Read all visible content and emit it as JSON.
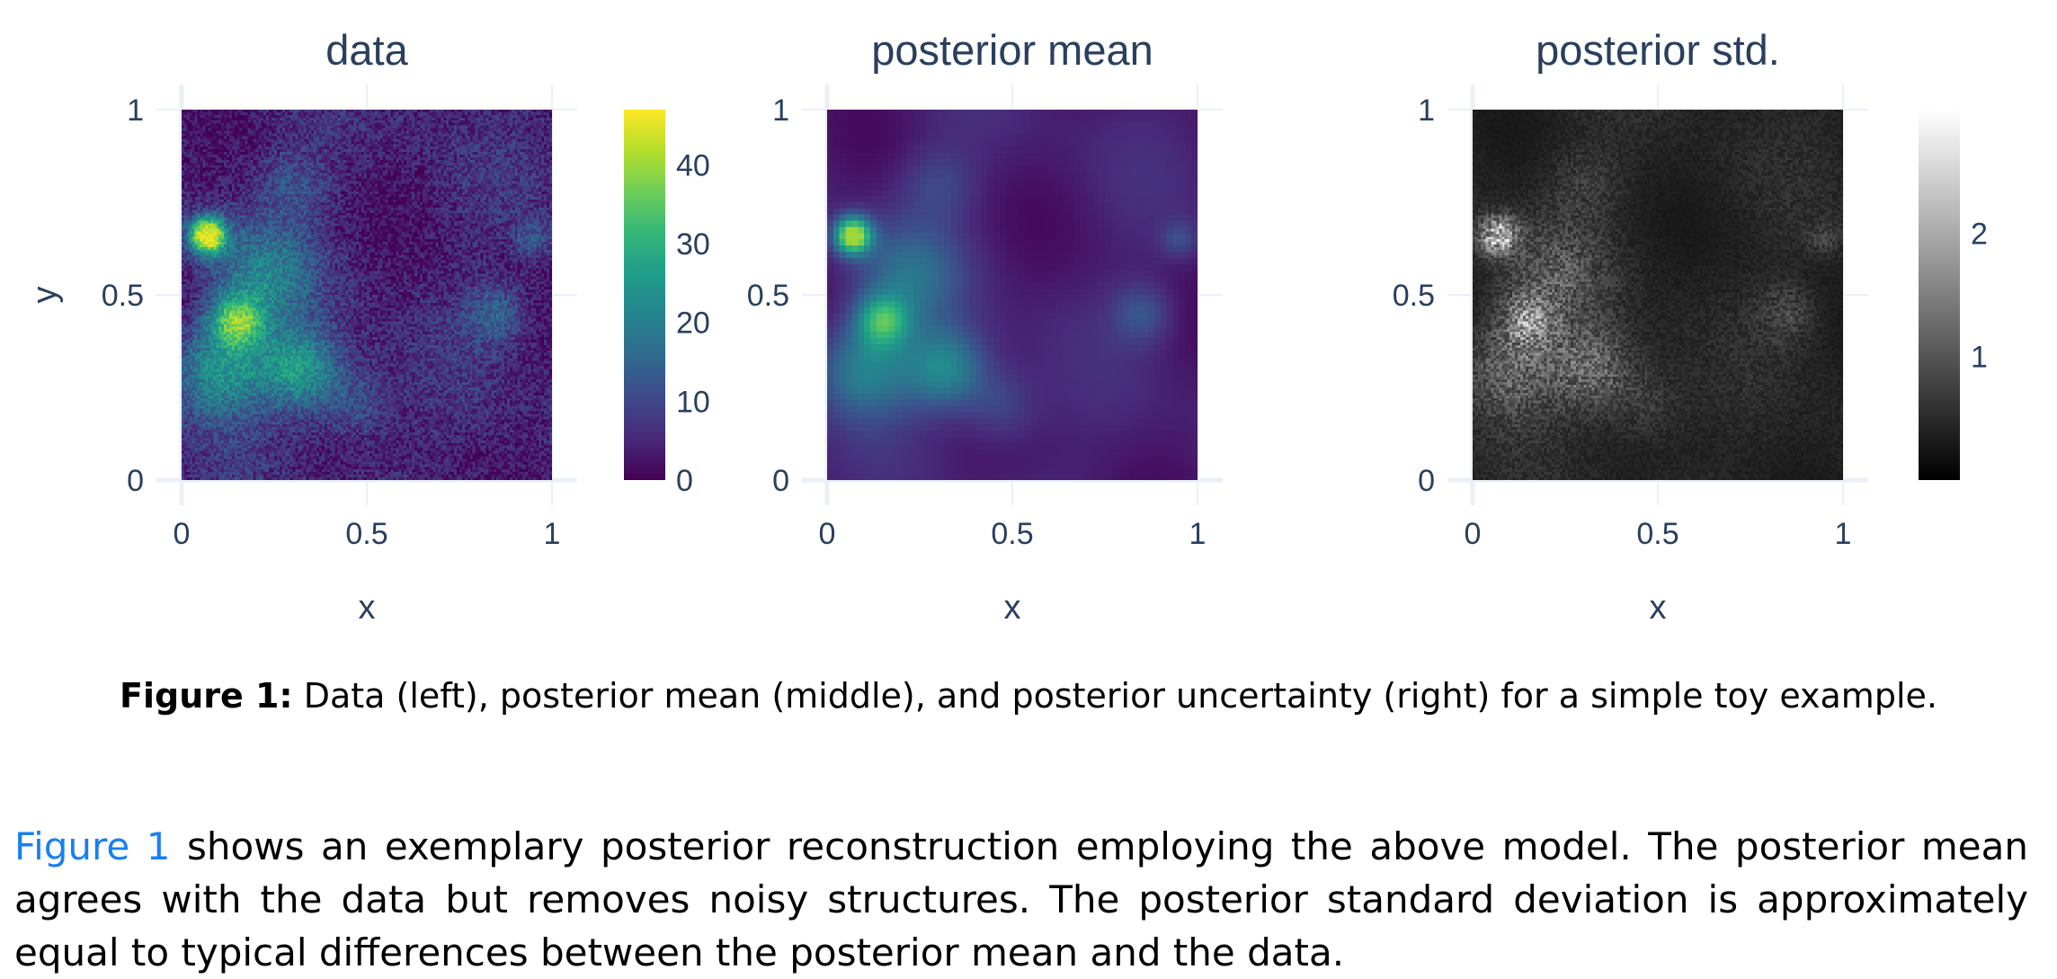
{
  "chart_data": [
    {
      "type": "heatmap",
      "title": "data",
      "xlabel": "x",
      "ylabel": "y",
      "xlim": [
        0,
        1
      ],
      "ylim": [
        0,
        1
      ],
      "xticks": [
        "0",
        "0.5",
        "1"
      ],
      "yticks": [
        "0",
        "0.5",
        "1"
      ],
      "colorscale": "viridis",
      "zrange": [
        0,
        47
      ],
      "colorbar_ticks": [
        "0",
        "10",
        "20",
        "30",
        "40"
      ],
      "colorbar_tick_values": [
        0,
        10,
        20,
        30,
        40
      ]
    },
    {
      "type": "heatmap",
      "title": "posterior mean",
      "xlabel": "x",
      "xlim": [
        0,
        1
      ],
      "ylim": [
        0,
        1
      ],
      "xticks": [
        "0",
        "0.5",
        "1"
      ],
      "yticks": [
        "0",
        "0.5",
        "1"
      ],
      "colorscale": "viridis",
      "zrange": [
        0,
        47
      ]
    },
    {
      "type": "heatmap",
      "title": "posterior std.",
      "xlabel": "x",
      "xlim": [
        0,
        1
      ],
      "ylim": [
        0,
        1
      ],
      "xticks": [
        "0",
        "0.5",
        "1"
      ],
      "yticks": [
        "0",
        "0.5",
        "1"
      ],
      "colorscale": "greys",
      "zrange": [
        0,
        3
      ],
      "colorbar_ticks": [
        "1",
        "2"
      ],
      "colorbar_tick_values": [
        1,
        2
      ]
    }
  ],
  "caption": {
    "label": "Figure 1:",
    "text": "Data (left), posterior mean (middle), and posterior uncertainty (right) for a simple toy example."
  },
  "paragraph": {
    "ref": "Figure 1",
    "text": "shows an exemplary posterior reconstruction employing the above model. The posterior mean agrees with the data but removes noisy structures. The posterior standard deviation is approximately equal to typical differences between the posterior mean and the data."
  },
  "colors": {
    "axis_text": "#2a3f5f",
    "grid": "#ebf0f8",
    "link": "#1a7ff0"
  }
}
